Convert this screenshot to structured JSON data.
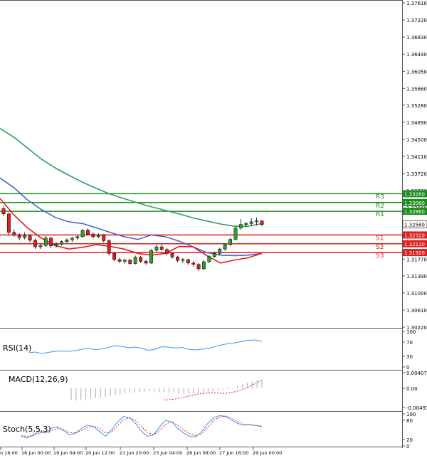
{
  "chart_data": [
    {
      "panel": "price",
      "type": "candlestick",
      "ylim": [
        1.3022,
        1.3761
      ],
      "y_ticks": [
        "1.37610",
        "1.37220",
        "1.36830",
        "1.36440",
        "1.36050",
        "1.35660",
        "1.35280",
        "1.34890",
        "1.34500",
        "1.34110",
        "1.33720",
        "1.33330",
        "1.32940",
        "1.32560",
        "1.32170",
        "1.31770",
        "1.31390",
        "1.31000",
        "1.30610",
        "1.30220"
      ],
      "current_price": {
        "label": "1.32560",
        "value": 1.3256
      },
      "levels": [
        {
          "name": "R3",
          "tag": "1.33260",
          "value": 1.3326,
          "color": "#1e8c1e"
        },
        {
          "name": "R2",
          "tag": "1.33060",
          "value": 1.3306,
          "color": "#1e8c1e"
        },
        {
          "name": "R1",
          "tag": "1.32860",
          "value": 1.3286,
          "color": "#1e8c1e"
        },
        {
          "name": "S1",
          "tag": "1.32320",
          "value": 1.3232,
          "color": "#e01e1e"
        },
        {
          "name": "S2",
          "tag": "1.32120",
          "value": 1.3212,
          "color": "#e01e1e"
        },
        {
          "name": "S3",
          "tag": "1.31920",
          "value": 1.3192,
          "color": "#e01e1e"
        }
      ],
      "candles": [
        [
          1.3292,
          1.3298,
          1.3275,
          1.328
        ],
        [
          1.328,
          1.3282,
          1.3232,
          1.3238
        ],
        [
          1.3238,
          1.3245,
          1.3228,
          1.3232
        ],
        [
          1.3232,
          1.3236,
          1.322,
          1.3226
        ],
        [
          1.3226,
          1.3238,
          1.3222,
          1.323
        ],
        [
          1.323,
          1.3233,
          1.3215,
          1.322
        ],
        [
          1.322,
          1.3224,
          1.32,
          1.3205
        ],
        [
          1.3205,
          1.3212,
          1.32,
          1.3208
        ],
        [
          1.3208,
          1.323,
          1.3205,
          1.3225
        ],
        [
          1.3225,
          1.3228,
          1.3202,
          1.3207
        ],
        [
          1.3207,
          1.3215,
          1.3203,
          1.3211
        ],
        [
          1.3211,
          1.322,
          1.3208,
          1.3217
        ],
        [
          1.3217,
          1.3224,
          1.3214,
          1.3221
        ],
        [
          1.3221,
          1.3228,
          1.3216,
          1.3225
        ],
        [
          1.3225,
          1.3232,
          1.322,
          1.3228
        ],
        [
          1.3228,
          1.3245,
          1.3226,
          1.3243
        ],
        [
          1.3243,
          1.3247,
          1.323,
          1.3234
        ],
        [
          1.3234,
          1.3238,
          1.3224,
          1.3228
        ],
        [
          1.3228,
          1.3236,
          1.3225,
          1.3232
        ],
        [
          1.3232,
          1.3234,
          1.3215,
          1.3219
        ],
        [
          1.3219,
          1.3222,
          1.3185,
          1.319
        ],
        [
          1.319,
          1.3193,
          1.3172,
          1.3176
        ],
        [
          1.3176,
          1.318,
          1.3168,
          1.3172
        ],
        [
          1.3172,
          1.3178,
          1.3166,
          1.3175
        ],
        [
          1.3175,
          1.3177,
          1.3164,
          1.3167
        ],
        [
          1.3167,
          1.3185,
          1.3165,
          1.3181
        ],
        [
          1.3181,
          1.3184,
          1.3168,
          1.3172
        ],
        [
          1.3172,
          1.3176,
          1.3164,
          1.3168
        ],
        [
          1.3168,
          1.32,
          1.3166,
          1.3197
        ],
        [
          1.3197,
          1.321,
          1.3194,
          1.3205
        ],
        [
          1.3205,
          1.3213,
          1.3196,
          1.3199
        ],
        [
          1.3199,
          1.3203,
          1.3186,
          1.319
        ],
        [
          1.319,
          1.3192,
          1.3178,
          1.3182
        ],
        [
          1.3182,
          1.3185,
          1.317,
          1.3174
        ],
        [
          1.3174,
          1.318,
          1.3168,
          1.3176
        ],
        [
          1.3176,
          1.3178,
          1.3164,
          1.3168
        ],
        [
          1.3168,
          1.3173,
          1.316,
          1.3165
        ],
        [
          1.3165,
          1.3168,
          1.315,
          1.3155
        ],
        [
          1.3155,
          1.3175,
          1.3152,
          1.3171
        ],
        [
          1.3171,
          1.3186,
          1.3168,
          1.3183
        ],
        [
          1.3183,
          1.3194,
          1.318,
          1.319
        ],
        [
          1.319,
          1.3203,
          1.3186,
          1.32
        ],
        [
          1.32,
          1.3213,
          1.3196,
          1.321
        ],
        [
          1.321,
          1.3226,
          1.3207,
          1.3222
        ],
        [
          1.3222,
          1.3252,
          1.3219,
          1.3248
        ],
        [
          1.3248,
          1.3268,
          1.3244,
          1.3256
        ],
        [
          1.3256,
          1.3262,
          1.325,
          1.3258
        ],
        [
          1.3258,
          1.327,
          1.3252,
          1.3262
        ],
        [
          1.3262,
          1.3272,
          1.3254,
          1.3264
        ],
        [
          1.3264,
          1.3266,
          1.3252,
          1.3256
        ]
      ],
      "moving_averages": [
        {
          "color": "#2ca05a",
          "values": [
            1.3475,
            1.3455,
            1.343,
            1.3405,
            1.3385,
            1.3368,
            1.3352,
            1.3338,
            1.3325,
            1.3315,
            1.3305,
            1.3296,
            1.3288,
            1.328,
            1.3271,
            1.3264,
            1.3257,
            1.3252,
            1.3252,
            1.3258
          ]
        },
        {
          "color": "#4466cc",
          "values": [
            1.3362,
            1.334,
            1.3312,
            1.329,
            1.3272,
            1.3262,
            1.3258,
            1.3248,
            1.3238,
            1.3228,
            1.3222,
            1.3232,
            1.3228,
            1.3218,
            1.3205,
            1.3192,
            1.3186,
            1.3185,
            1.3186,
            1.319
          ]
        },
        {
          "color": "#e01e1e",
          "values": [
            1.3315,
            1.3278,
            1.3248,
            1.3225,
            1.3208,
            1.32,
            1.3204,
            1.321,
            1.3206,
            1.32,
            1.319,
            1.3186,
            1.319,
            1.3206,
            1.3205,
            1.3185,
            1.3168,
            1.3175,
            1.318,
            1.319
          ]
        }
      ]
    },
    {
      "panel": "rsi",
      "type": "line",
      "title": "RSI(14)",
      "y_ticks": [
        "100",
        "70",
        "30",
        "0"
      ],
      "ylim": [
        0,
        100
      ],
      "series": [
        {
          "color": "#3399ff",
          "values": [
            40,
            42,
            38,
            41,
            44,
            45,
            44,
            46,
            50,
            52,
            49,
            51,
            55,
            60,
            58,
            54,
            56,
            52,
            47,
            50,
            57,
            56,
            53,
            55,
            50,
            48,
            50,
            52,
            58,
            62,
            66,
            68,
            72,
            75,
            76,
            72
          ]
        }
      ]
    },
    {
      "panel": "macd",
      "type": "bar",
      "title": "MACD(12,26,9)",
      "y_ticks": [
        "0.004071",
        "0.00",
        "-0.004975"
      ],
      "ylim": [
        -0.004975,
        0.004071
      ],
      "values": [
        -0.003,
        -0.0032,
        -0.0031,
        -0.0028,
        -0.0027,
        -0.0025,
        -0.0024,
        -0.0022,
        -0.002,
        -0.0018,
        -0.0016,
        -0.0014,
        -0.0012,
        -0.001,
        -0.0009,
        -0.0008,
        -0.0008,
        -0.0009,
        -0.001,
        -0.0011,
        -0.0012,
        -0.0013,
        -0.0014,
        -0.0014,
        -0.0015,
        -0.0014,
        -0.0013,
        -0.0012,
        -0.001,
        -0.0008,
        -0.0006,
        -0.0004,
        -0.0002,
        0.0002,
        0.0006,
        0.001,
        0.0014,
        0.0018,
        0.0021,
        0.0023
      ],
      "signal": [
        -0.003,
        -0.003,
        -0.0029,
        -0.0028,
        -0.0026,
        -0.0024,
        -0.0022,
        -0.002,
        -0.0018,
        -0.0016,
        -0.0014,
        -0.0013,
        -0.0012,
        -0.0011,
        -0.0012,
        -0.0012,
        -0.0013,
        -0.0013,
        -0.0012,
        -0.001,
        -0.0008,
        -0.0005,
        -0.0002,
        0.0002,
        0.0007,
        0.0012,
        0.0017,
        0.002
      ]
    },
    {
      "panel": "stochastic",
      "type": "line",
      "title": "Stoch(5,5,3)",
      "y_ticks": [
        "100",
        "80",
        "20",
        "0"
      ],
      "ylim": [
        0,
        100
      ],
      "series": [
        {
          "color": "#3399ff",
          "values": [
            30,
            25,
            35,
            45,
            40,
            55,
            60,
            48,
            35,
            40,
            55,
            65,
            60,
            45,
            30,
            50,
            75,
            92,
            88,
            70,
            45,
            30,
            35,
            60,
            80,
            75,
            55,
            40,
            30,
            28,
            45,
            70,
            88,
            95,
            92,
            80,
            70,
            65,
            66,
            64,
            60
          ]
        },
        {
          "color": "#e01e1e",
          "dash": true,
          "values": [
            32,
            30,
            32,
            40,
            42,
            48,
            55,
            52,
            42,
            40,
            48,
            58,
            62,
            55,
            40,
            44,
            62,
            82,
            88,
            80,
            60,
            42,
            35,
            48,
            68,
            76,
            65,
            50,
            38,
            32,
            38,
            58,
            80,
            90,
            93,
            86,
            76,
            68,
            66,
            64,
            62
          ]
        }
      ]
    }
  ],
  "x_ticks": [
    "n 16:00",
    "16 Jun 00:00",
    "19 Jun 04:00",
    "20 Jun 12:00",
    "21 Jun 20:00",
    "23 Jun 04:00",
    "26 Jun 08:00",
    "27 Jun 16:00",
    "29 Jun 00:00"
  ]
}
